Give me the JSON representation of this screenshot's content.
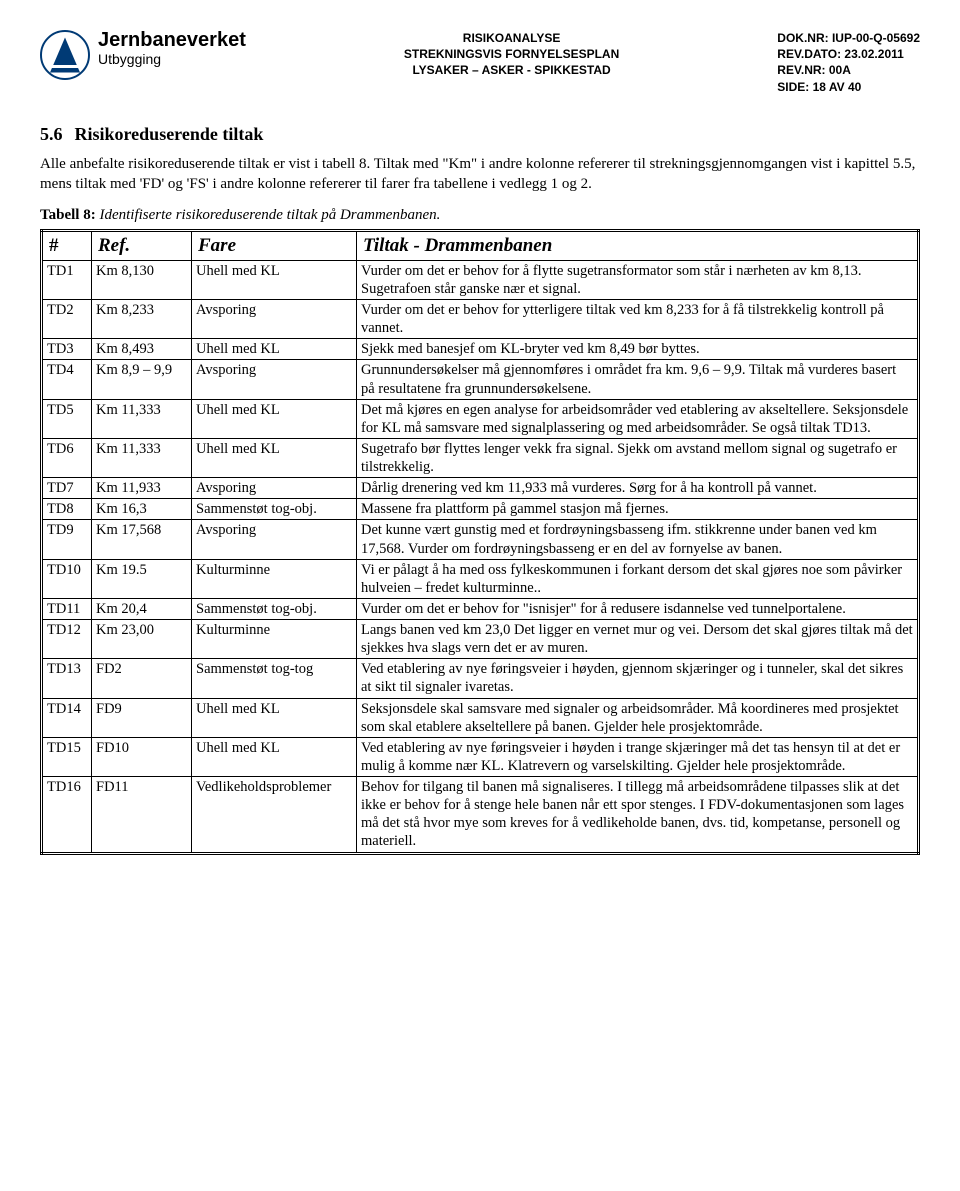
{
  "header": {
    "brand": "Jernbaneverket",
    "subtitle": "Utbygging",
    "center_line1": "RISIKOANALYSE",
    "center_line2": "STREKNINGSVIS FORNYELSESPLAN",
    "center_line3": "LYSAKER – ASKER - SPIKKESTAD",
    "right_dok": "DOK.NR: IUP-00-Q-05692",
    "right_date": "REV.DATO: 23.02.2011",
    "right_rev": "REV.NR: 00A",
    "right_page": "SIDE: 18 AV 40"
  },
  "section": {
    "number": "5.6",
    "title": "Risikoreduserende tiltak"
  },
  "para1": "Alle anbefalte risikoreduserende tiltak er vist i tabell 8. Tiltak med \"Km\" i andre kolonne refererer til strekningsgjennomgangen vist i kapittel 5.5, mens tiltak med 'FD' og 'FS' i andre kolonne refererer til farer fra tabellene i vedlegg 1 og 2.",
  "caption": {
    "label": "Tabell 8:",
    "text": "Identifiserte risikoreduserende tiltak på Drammenbanen."
  },
  "table": {
    "columns": [
      "#",
      "Ref.",
      "Fare",
      "Tiltak - Drammenbanen"
    ],
    "rows": [
      [
        "TD1",
        "Km 8,130",
        "Uhell med KL",
        "Vurder om det er behov for å flytte sugetransformator som står i nærheten av km 8,13. Sugetrafoen står ganske nær et signal."
      ],
      [
        "TD2",
        "Km 8,233",
        "Avsporing",
        "Vurder om det er behov for ytterligere tiltak ved km 8,233 for å få tilstrekkelig kontroll på vannet."
      ],
      [
        "TD3",
        "Km 8,493",
        "Uhell med KL",
        "Sjekk med banesjef om KL-bryter ved km 8,49 bør byttes."
      ],
      [
        "TD4",
        "Km 8,9 – 9,9",
        "Avsporing",
        "Grunnundersøkelser må gjennomføres i området fra km. 9,6 – 9,9. Tiltak må vurderes basert på resultatene fra grunnundersøkelsene."
      ],
      [
        "TD5",
        "Km 11,333",
        "Uhell med KL",
        "Det må kjøres en egen analyse for arbeidsområder ved etablering av akseltellere. Seksjonsdele for KL må samsvare med signalplassering og med arbeidsområder. Se også tiltak TD13."
      ],
      [
        "TD6",
        "Km 11,333",
        "Uhell med KL",
        "Sugetrafo bør flyttes lenger vekk fra signal. Sjekk om avstand mellom signal og sugetrafo er tilstrekkelig."
      ],
      [
        "TD7",
        "Km 11,933",
        "Avsporing",
        "Dårlig drenering ved km 11,933 må vurderes. Sørg for å ha kontroll på vannet."
      ],
      [
        "TD8",
        "Km 16,3",
        "Sammenstøt tog-obj.",
        "Massene fra plattform på gammel stasjon må fjernes."
      ],
      [
        "TD9",
        "Km 17,568",
        "Avsporing",
        "Det kunne vært gunstig med et fordrøyningsbasseng ifm. stikkrenne under banen ved km 17,568. Vurder om fordrøyningsbasseng er en del av fornyelse av banen."
      ],
      [
        "TD10",
        "Km 19.5",
        "Kulturminne",
        "Vi er pålagt å ha med oss fylkeskommunen i forkant dersom det skal gjøres noe som påvirker hulveien – fredet kulturminne.."
      ],
      [
        "TD11",
        "Km 20,4",
        "Sammenstøt tog-obj.",
        "Vurder om det er behov for \"isnisjer\" for å redusere isdannelse ved tunnelportalene."
      ],
      [
        "TD12",
        "Km 23,00",
        "Kulturminne",
        "Langs banen ved km 23,0 Det ligger en vernet mur og vei. Dersom det skal gjøres tiltak må det sjekkes hva slags vern det er av muren."
      ],
      [
        "TD13",
        "FD2",
        "Sammenstøt tog-tog",
        "Ved etablering av nye føringsveier i høyden, gjennom skjæringer og i tunneler, skal det sikres at sikt til signaler ivaretas."
      ],
      [
        "TD14",
        "FD9",
        "Uhell med KL",
        "Seksjonsdele skal samsvare med signaler og arbeidsområder. Må koordineres med prosjektet som skal etablere akseltellere på banen. Gjelder hele prosjektområde."
      ],
      [
        "TD15",
        "FD10",
        "Uhell med KL",
        "Ved etablering av nye føringsveier i høyden i trange skjæringer må det tas hensyn til at det er mulig å komme nær KL. Klatrevern og varselskilting. Gjelder hele prosjektområde."
      ],
      [
        "TD16",
        "FD11",
        "Vedlikeholdsproblemer",
        "Behov for tilgang til banen må signaliseres. I tillegg må arbeidsområdene tilpasses slik at det ikke er behov for å stenge hele banen når ett spor stenges. I FDV-dokumentasjonen som lages må det stå hvor mye som kreves for å vedlikeholde banen, dvs. tid, kompetanse, personell og materiell."
      ]
    ]
  }
}
